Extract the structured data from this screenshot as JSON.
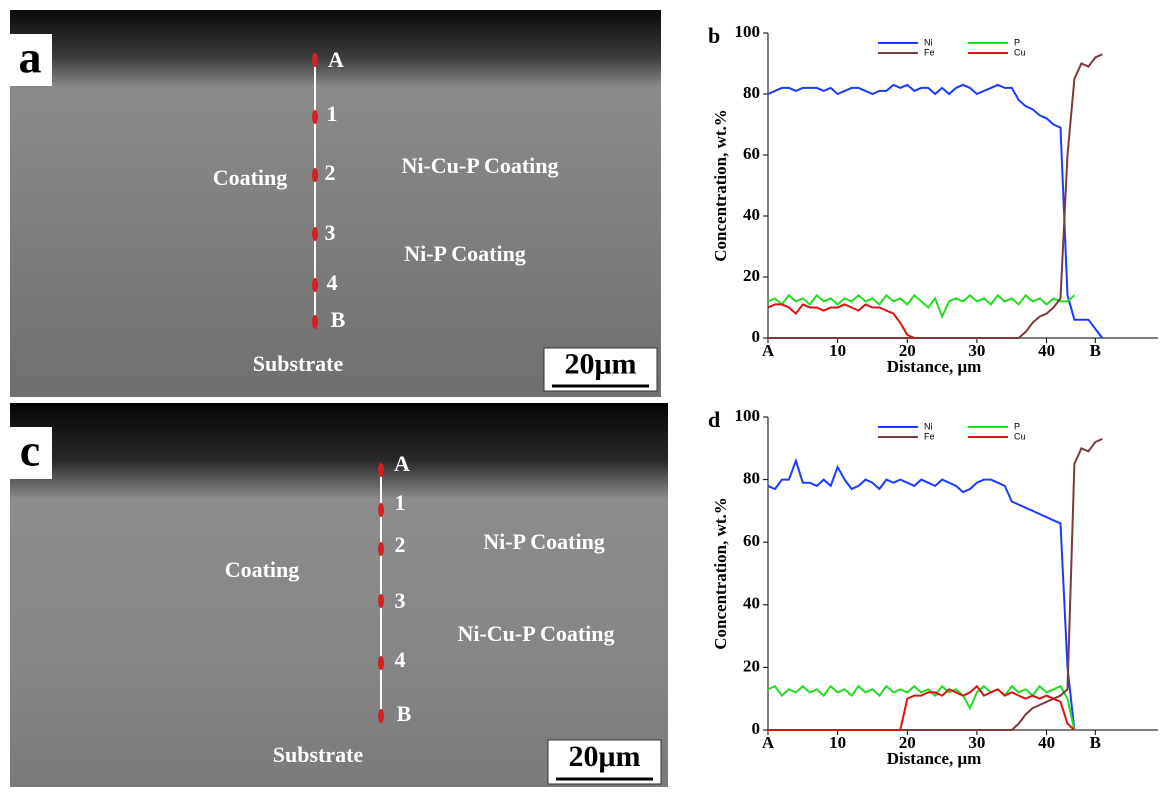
{
  "images": [
    {
      "label": "a",
      "points": [
        "A",
        "1",
        "2",
        "3",
        "4",
        "B"
      ],
      "annotations": [
        "Coating",
        "Ni-Cu-P Coating",
        "Ni-P Coating",
        "Substrate"
      ],
      "scale_bar": "20μm"
    },
    {
      "label": "c",
      "points": [
        "A",
        "1",
        "2",
        "3",
        "4",
        "B"
      ],
      "annotations": [
        "Coating",
        "Ni-P Coating",
        "Ni-Cu-P Coating",
        "Substrate"
      ],
      "scale_bar": "20μm"
    }
  ],
  "chart_data": [
    {
      "type": "line",
      "label": "b",
      "x_label": "Distance, μm",
      "y_label": "Concentration, wt.%",
      "x": [
        0,
        1,
        2,
        3,
        4,
        5,
        6,
        7,
        8,
        9,
        10,
        11,
        12,
        13,
        14,
        15,
        16,
        17,
        18,
        19,
        20,
        21,
        22,
        23,
        24,
        25,
        26,
        27,
        28,
        29,
        30,
        31,
        32,
        33,
        34,
        35,
        36,
        37,
        38,
        39,
        40,
        41,
        42,
        43,
        44,
        45,
        46,
        47,
        48
      ],
      "xlim": [
        0,
        56
      ],
      "xticks": [
        {
          "value": 0,
          "label": "A"
        },
        10,
        20,
        30,
        40,
        {
          "value": 47,
          "label": "B"
        }
      ],
      "ylim": [
        0,
        100
      ],
      "yticks": [
        0,
        20,
        40,
        60,
        80,
        100
      ],
      "grid": false,
      "series": [
        {
          "name": "Ni",
          "color": "#1a3cff",
          "values": [
            80,
            81,
            82,
            82,
            81,
            82,
            82,
            82,
            81,
            82,
            80,
            81,
            82,
            82,
            81,
            80,
            81,
            81,
            83,
            82,
            83,
            81,
            82,
            82,
            80,
            82,
            80,
            82,
            83,
            82,
            80,
            81,
            82,
            83,
            82,
            82,
            78,
            76,
            75,
            73,
            72,
            70,
            69,
            14,
            6,
            6,
            6,
            3,
            0
          ]
        },
        {
          "name": "P",
          "color": "#22dd22",
          "values": [
            12,
            13,
            11,
            14,
            12,
            13,
            11,
            14,
            12,
            13,
            11,
            13,
            12,
            14,
            12,
            13,
            11,
            14,
            12,
            13,
            11,
            14,
            12,
            10,
            13,
            7,
            12,
            13,
            12,
            14,
            12,
            13,
            11,
            14,
            12,
            13,
            11,
            14,
            12,
            13,
            11,
            13,
            12,
            12,
            14,
            null,
            null,
            null,
            null
          ]
        },
        {
          "name": "Fe",
          "color": "#7b3b3b",
          "values": [
            0,
            0,
            0,
            0,
            0,
            0,
            0,
            0,
            0,
            0,
            0,
            0,
            0,
            0,
            0,
            0,
            0,
            0,
            0,
            0,
            0,
            0,
            0,
            0,
            0,
            0,
            0,
            0,
            0,
            0,
            0,
            0,
            0,
            0,
            0,
            0,
            0,
            2,
            5,
            7,
            8,
            10,
            13,
            60,
            85,
            90,
            89,
            92,
            93
          ]
        },
        {
          "name": "Cu",
          "color": "#e01010",
          "values": [
            10,
            11,
            11,
            10,
            8,
            11,
            10,
            10,
            9,
            10,
            10,
            11,
            10,
            9,
            11,
            10,
            10,
            9,
            8,
            5,
            1,
            0,
            null,
            null,
            null,
            null,
            null,
            null,
            null,
            null,
            null,
            null,
            null,
            null,
            null,
            null,
            null,
            null,
            null,
            null,
            null,
            null,
            null,
            null,
            null,
            null,
            null,
            null,
            null
          ]
        }
      ]
    },
    {
      "type": "line",
      "label": "d",
      "x_label": "Distance, μm",
      "y_label": "Concentration, wt.%",
      "x": [
        0,
        1,
        2,
        3,
        4,
        5,
        6,
        7,
        8,
        9,
        10,
        11,
        12,
        13,
        14,
        15,
        16,
        17,
        18,
        19,
        20,
        21,
        22,
        23,
        24,
        25,
        26,
        27,
        28,
        29,
        30,
        31,
        32,
        33,
        34,
        35,
        36,
        37,
        38,
        39,
        40,
        41,
        42,
        43,
        44,
        45,
        46,
        47,
        48
      ],
      "xlim": [
        0,
        56
      ],
      "xticks": [
        {
          "value": 0,
          "label": "A"
        },
        10,
        20,
        30,
        40,
        {
          "value": 47,
          "label": "B"
        }
      ],
      "ylim": [
        0,
        100
      ],
      "yticks": [
        0,
        20,
        40,
        60,
        80,
        100
      ],
      "grid": false,
      "series": [
        {
          "name": "Ni",
          "color": "#1a3cff",
          "values": [
            78,
            77,
            80,
            80,
            86,
            79,
            79,
            78,
            80,
            78,
            84,
            80,
            77,
            78,
            80,
            79,
            77,
            80,
            79,
            80,
            79,
            78,
            80,
            79,
            78,
            80,
            79,
            78,
            76,
            77,
            79,
            80,
            80,
            79,
            78,
            73,
            72,
            71,
            70,
            69,
            68,
            67,
            66,
            20,
            0,
            null,
            null,
            null,
            null
          ]
        },
        {
          "name": "P",
          "color": "#22dd22",
          "values": [
            13,
            14,
            11,
            13,
            12,
            14,
            12,
            13,
            11,
            14,
            12,
            13,
            11,
            14,
            12,
            13,
            11,
            14,
            12,
            13,
            12,
            14,
            12,
            13,
            11,
            14,
            12,
            13,
            11,
            7,
            12,
            14,
            12,
            13,
            11,
            14,
            12,
            13,
            11,
            14,
            12,
            13,
            14,
            10,
            0,
            null,
            null,
            null,
            null
          ]
        },
        {
          "name": "Fe",
          "color": "#7b3b3b",
          "values": [
            0,
            0,
            0,
            0,
            0,
            0,
            0,
            0,
            0,
            0,
            0,
            0,
            0,
            0,
            0,
            0,
            0,
            0,
            0,
            0,
            0,
            0,
            0,
            0,
            0,
            0,
            0,
            0,
            0,
            0,
            0,
            0,
            0,
            0,
            0,
            0,
            2,
            5,
            7,
            8,
            9,
            10,
            11,
            13,
            85,
            90,
            89,
            92,
            93
          ]
        },
        {
          "name": "Cu",
          "color": "#e01010",
          "values": [
            0,
            0,
            0,
            0,
            0,
            0,
            0,
            0,
            0,
            0,
            0,
            0,
            0,
            0,
            0,
            0,
            0,
            0,
            0,
            0,
            10,
            11,
            11,
            12,
            12,
            11,
            13,
            12,
            11,
            12,
            14,
            11,
            12,
            13,
            11,
            12,
            11,
            10,
            11,
            10,
            11,
            10,
            9,
            2,
            0,
            null,
            null,
            null,
            null
          ]
        }
      ]
    }
  ]
}
